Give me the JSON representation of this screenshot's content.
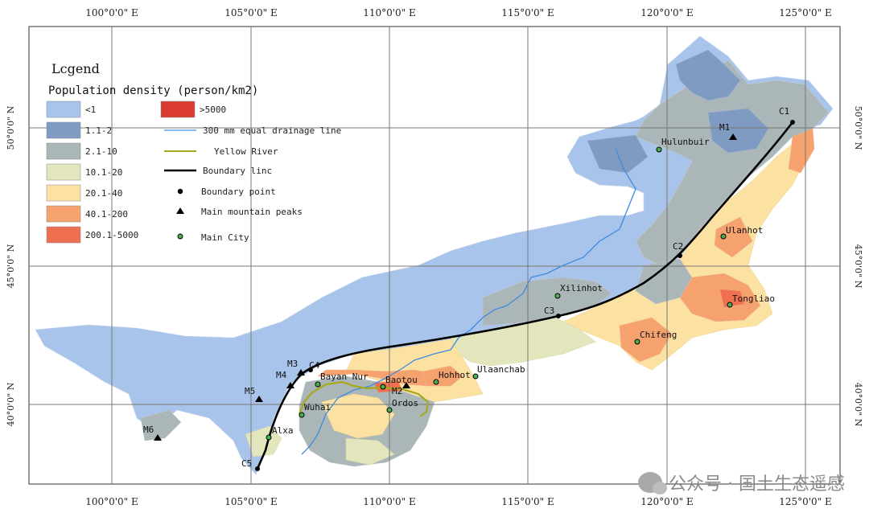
{
  "axes": {
    "lon_ticks": [
      "100°0'0\" E",
      "105°0'0\" E",
      "110°0'0\" E",
      "115°0'0\" E",
      "120°0'0\" E",
      "125°0'0\" E"
    ],
    "lat_ticks": [
      "50°0'0\" N",
      "45°0'0\" N",
      "40°0'0\" N"
    ]
  },
  "legend": {
    "title": "Lcgend",
    "subtitle": "Population density (person/km2)",
    "classes": [
      {
        "label": "<1",
        "color": "#a9c4ea"
      },
      {
        "label": "1.1-2",
        "color": "#7f9bc2"
      },
      {
        "label": "2.1-10",
        "color": "#aab6b8"
      },
      {
        "label": "10.1-20",
        "color": "#e3e6bd"
      },
      {
        "label": "20.1-40",
        "color": "#fbe2a3"
      },
      {
        "label": "40.1-200",
        "color": "#f6a26f"
      },
      {
        "label": "200.1-5000",
        "color": "#ee7050"
      },
      {
        "label": ">5000",
        "color": "#d93a32"
      }
    ],
    "symbols": [
      {
        "label": "300 mm equal drainage line",
        "kind": "blue-line",
        "color": "#3f8ae0"
      },
      {
        "label": "Yellow River",
        "kind": "olive-line",
        "color": "#a9a81c"
      },
      {
        "label": "Boundary linc",
        "kind": "black-line",
        "color": "#000000"
      },
      {
        "label": "Boundary point",
        "kind": "dot"
      },
      {
        "label": "Main mountain peaks",
        "kind": "triangle"
      },
      {
        "label": "Main City",
        "kind": "city"
      }
    ]
  },
  "cities": [
    {
      "name": "Hulunbuir"
    },
    {
      "name": "Ulanhot"
    },
    {
      "name": "Xilinhot"
    },
    {
      "name": "Tongliao"
    },
    {
      "name": "Chifeng"
    },
    {
      "name": "Ulaanchab"
    },
    {
      "name": "Hohhot"
    },
    {
      "name": "Baotou"
    },
    {
      "name": "Bayan Nur"
    },
    {
      "name": "Ordos"
    },
    {
      "name": "Wuhai"
    },
    {
      "name": "Alxa"
    }
  ],
  "boundary_points": [
    "C1",
    "C2",
    "C3",
    "C4",
    "C5"
  ],
  "peaks": [
    "M1",
    "M2",
    "M3",
    "M4",
    "M5",
    "M6"
  ],
  "watermark": "公众号 · 国土生态遥感"
}
